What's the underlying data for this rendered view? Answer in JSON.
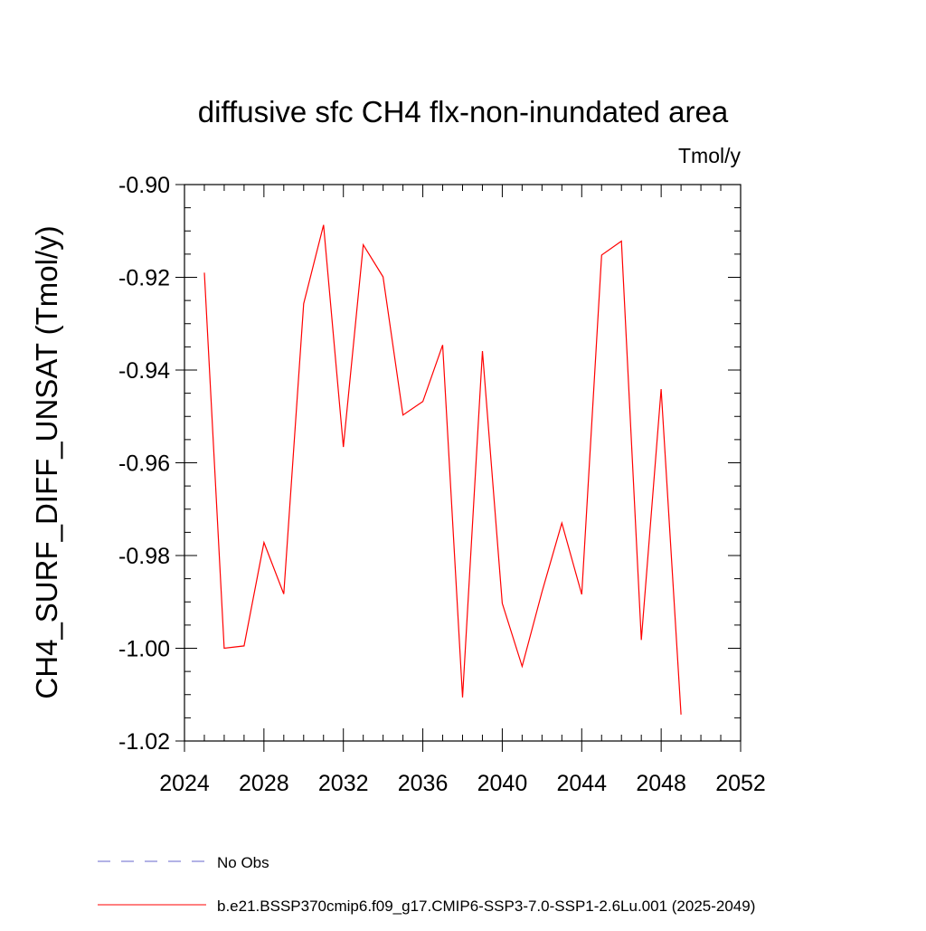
{
  "chart_data": {
    "type": "line",
    "title": "diffusive sfc CH4 flx-non-inundated area",
    "units_label": "Tmol/y",
    "xlabel": "",
    "ylabel": "CH4_SURF_DIFF_UNSAT  (Tmol/y)",
    "xlim": [
      2024,
      2052
    ],
    "ylim": [
      -1.02,
      -0.9
    ],
    "xticks": [
      2024,
      2028,
      2032,
      2036,
      2040,
      2044,
      2048,
      2052
    ],
    "xtick_labels": [
      "2024",
      "2028",
      "2032",
      "2036",
      "2040",
      "2044",
      "2048",
      "2052"
    ],
    "yticks": [
      -0.9,
      -0.92,
      -0.94,
      -0.96,
      -0.98,
      -1.0,
      -1.02
    ],
    "ytick_labels": [
      "-0.90",
      "-0.92",
      "-0.94",
      "-0.96",
      "-0.98",
      "-1.00",
      "-1.02"
    ],
    "grid": false,
    "legend_position": "bottom",
    "series": [
      {
        "name": "b.e21.BSSP370cmip6.f09_g17.CMIP6-SSP3-7.0-SSP1-2.6Lu.001 (2025-2049)",
        "color": "#ff0000",
        "style": "solid",
        "x": [
          2025,
          2026,
          2027,
          2028,
          2029,
          2030,
          2031,
          2032,
          2033,
          2034,
          2035,
          2036,
          2037,
          2038,
          2039,
          2040,
          2041,
          2042,
          2043,
          2044,
          2045,
          2046,
          2047,
          2048,
          2049
        ],
        "y": [
          -0.919,
          -1.0,
          -0.9995,
          -0.9772,
          -0.9883,
          -0.9257,
          -0.9087,
          -0.9566,
          -0.913,
          -0.9199,
          -0.9497,
          -0.9468,
          -0.9346,
          -1.0106,
          -0.9359,
          -0.9903,
          -1.0039,
          -0.9878,
          -0.973,
          -0.9884,
          -0.9152,
          -0.9122,
          -0.9982,
          -0.9441,
          -1.0143
        ]
      }
    ],
    "legend": [
      {
        "label": "No Obs",
        "color": "#6666cc",
        "style": "dashed"
      },
      {
        "label": "b.e21.BSSP370cmip6.f09_g17.CMIP6-SSP3-7.0-SSP1-2.6Lu.001 (2025-2049)",
        "color": "#ff0000",
        "style": "solid"
      }
    ]
  }
}
